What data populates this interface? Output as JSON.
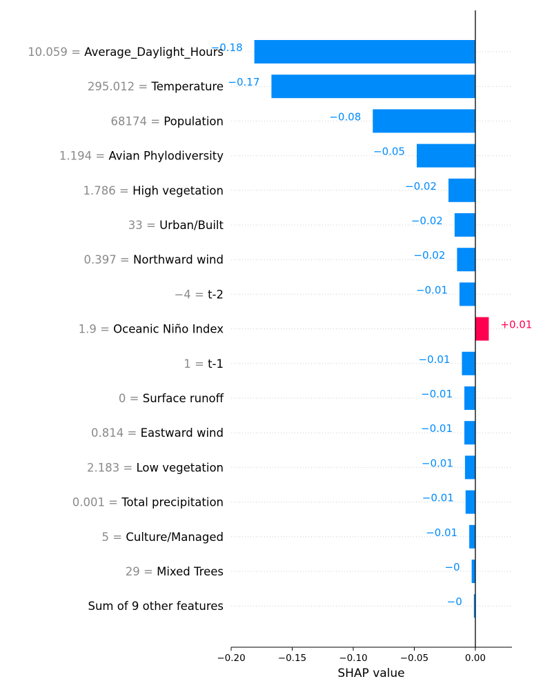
{
  "chart_data": {
    "type": "bar",
    "orientation": "horizontal",
    "xlabel": "SHAP value",
    "xlim": [
      -0.2,
      0.03
    ],
    "xticks": [
      -0.2,
      -0.15,
      -0.1,
      -0.05,
      0.0
    ],
    "xtick_labels": [
      "−0.20",
      "−0.15",
      "−0.10",
      "−0.05",
      "0.00"
    ],
    "grid": "dotted horizontal lines per row",
    "colors": {
      "negative": "#008bfb",
      "positive": "#ff0051",
      "feature_value": "#8a8a8a",
      "feature_name": "#000000",
      "zero_line": "#000000"
    },
    "rows": [
      {
        "feature_value": "10.059 = ",
        "feature": "Average_Daylight_Hours",
        "value": -0.181,
        "label": "−0.18"
      },
      {
        "feature_value": "295.012 = ",
        "feature": "Temperature",
        "value": -0.167,
        "label": "−0.17"
      },
      {
        "feature_value": "68174 = ",
        "feature": "Population",
        "value": -0.084,
        "label": "−0.08"
      },
      {
        "feature_value": "1.194 = ",
        "feature": "Avian Phylodiversity",
        "value": -0.048,
        "label": "−0.05"
      },
      {
        "feature_value": "1.786 = ",
        "feature": "High vegetation",
        "value": -0.022,
        "label": "−0.02"
      },
      {
        "feature_value": "33 = ",
        "feature": "Urban/Built",
        "value": -0.017,
        "label": "−0.02"
      },
      {
        "feature_value": "0.397 = ",
        "feature": "Northward wind",
        "value": -0.015,
        "label": "−0.02"
      },
      {
        "feature_value": "−4 = ",
        "feature": "t-2",
        "value": -0.013,
        "label": "−0.01"
      },
      {
        "feature_value": "1.9 = ",
        "feature": "Oceanic Niño Index",
        "value": 0.011,
        "label": "+0.01"
      },
      {
        "feature_value": "1 = ",
        "feature": "t-1",
        "value": -0.011,
        "label": "−0.01"
      },
      {
        "feature_value": "0 = ",
        "feature": "Surface runoff",
        "value": -0.009,
        "label": "−0.01"
      },
      {
        "feature_value": "0.814 = ",
        "feature": "Eastward wind",
        "value": -0.009,
        "label": "−0.01"
      },
      {
        "feature_value": "2.183 = ",
        "feature": "Low vegetation",
        "value": -0.0085,
        "label": "−0.01"
      },
      {
        "feature_value": "0.001 = ",
        "feature": "Total precipitation",
        "value": -0.008,
        "label": "−0.01"
      },
      {
        "feature_value": "5 = ",
        "feature": "Culture/Managed",
        "value": -0.005,
        "label": "−0.01"
      },
      {
        "feature_value": "29 = ",
        "feature": "Mixed Trees",
        "value": -0.003,
        "label": "−0"
      },
      {
        "feature_value": "",
        "feature": "Sum of 9 other features",
        "value": -0.0012,
        "label": "−0"
      }
    ]
  }
}
